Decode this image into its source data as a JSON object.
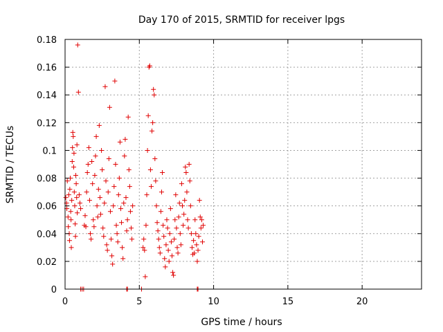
{
  "chart_data": {
    "type": "scatter",
    "title": "Day 170 of 2015, SRMTID for receiver lpgs",
    "xlabel": "GPS time / hours",
    "ylabel": "SRMTID / TECUs",
    "xlim": [
      0,
      24
    ],
    "ylim": [
      0,
      0.18
    ],
    "xticks": [
      0,
      5,
      10,
      15,
      20
    ],
    "yticks": [
      0,
      0.02,
      0.04,
      0.06,
      0.08,
      0.1,
      0.12,
      0.14,
      0.16,
      0.18
    ],
    "xtick_labels": [
      "0",
      "5",
      "10",
      "15",
      "20"
    ],
    "ytick_labels": [
      "0",
      "0.02",
      "0.04",
      "0.06",
      "0.08",
      "0.1",
      "0.12",
      "0.14",
      "0.16",
      "0.18"
    ],
    "grid": true,
    "marker": "+",
    "color": "#e00000",
    "series": [
      {
        "name": "SRMTID",
        "points": [
          [
            0.05,
            0.066
          ],
          [
            0.1,
            0.062
          ],
          [
            0.12,
            0.058
          ],
          [
            0.15,
            0.078
          ],
          [
            0.2,
            0.052
          ],
          [
            0.22,
            0.045
          ],
          [
            0.25,
            0.068
          ],
          [
            0.28,
            0.04
          ],
          [
            0.3,
            0.035
          ],
          [
            0.32,
            0.072
          ],
          [
            0.35,
            0.08
          ],
          [
            0.38,
            0.056
          ],
          [
            0.4,
            0.05
          ],
          [
            0.42,
            0.03
          ],
          [
            0.45,
            0.064
          ],
          [
            0.48,
            0.092
          ],
          [
            0.5,
            0.102
          ],
          [
            0.52,
            0.113
          ],
          [
            0.55,
            0.11
          ],
          [
            0.58,
            0.088
          ],
          [
            0.6,
            0.098
          ],
          [
            0.62,
            0.07
          ],
          [
            0.65,
            0.06
          ],
          [
            0.68,
            0.047
          ],
          [
            0.7,
            0.038
          ],
          [
            0.72,
            0.082
          ],
          [
            0.75,
            0.076
          ],
          [
            0.78,
            0.066
          ],
          [
            0.8,
            0.104
          ],
          [
            0.82,
            0.055
          ],
          [
            0.85,
            0.176
          ],
          [
            0.9,
            0.142
          ],
          [
            0.95,
            0.068
          ],
          [
            1.0,
            0.062
          ],
          [
            1.05,
            0.058
          ],
          [
            1.3,
            0.046
          ],
          [
            1.35,
            0.053
          ],
          [
            1.4,
            0.045
          ],
          [
            1.45,
            0.07
          ],
          [
            1.5,
            0.084
          ],
          [
            1.55,
            0.09
          ],
          [
            1.6,
            0.102
          ],
          [
            1.65,
            0.064
          ],
          [
            1.7,
            0.04
          ],
          [
            1.75,
            0.036
          ],
          [
            1.8,
            0.092
          ],
          [
            1.85,
            0.076
          ],
          [
            1.9,
            0.05
          ],
          [
            1.95,
            0.045
          ],
          [
            2.0,
            0.082
          ],
          [
            2.05,
            0.096
          ],
          [
            2.1,
            0.11
          ],
          [
            2.15,
            0.06
          ],
          [
            2.2,
            0.052
          ],
          [
            2.25,
            0.072
          ],
          [
            2.3,
            0.118
          ],
          [
            2.35,
            0.066
          ],
          [
            2.4,
            0.054
          ],
          [
            2.45,
            0.1
          ],
          [
            2.5,
            0.086
          ],
          [
            2.55,
            0.044
          ],
          [
            2.6,
            0.038
          ],
          [
            2.65,
            0.062
          ],
          [
            2.7,
            0.146
          ],
          [
            2.75,
            0.078
          ],
          [
            2.8,
            0.032
          ],
          [
            2.85,
            0.028
          ],
          [
            2.9,
            0.07
          ],
          [
            2.95,
            0.094
          ],
          [
            3.0,
            0.131
          ],
          [
            3.05,
            0.056
          ],
          [
            3.1,
            0.036
          ],
          [
            3.15,
            0.024
          ],
          [
            3.2,
            0.018
          ],
          [
            3.25,
            0.06
          ],
          [
            3.3,
            0.074
          ],
          [
            3.35,
            0.15
          ],
          [
            3.4,
            0.09
          ],
          [
            3.45,
            0.046
          ],
          [
            3.5,
            0.04
          ],
          [
            3.55,
            0.034
          ],
          [
            3.6,
            0.068
          ],
          [
            3.65,
            0.08
          ],
          [
            3.7,
            0.106
          ],
          [
            3.75,
            0.058
          ],
          [
            3.8,
            0.048
          ],
          [
            3.85,
            0.03
          ],
          [
            3.9,
            0.022
          ],
          [
            3.95,
            0.062
          ],
          [
            4.0,
            0.096
          ],
          [
            4.05,
            0.108
          ],
          [
            4.1,
            0.066
          ],
          [
            4.15,
            0.042
          ],
          [
            4.2,
            0.05
          ],
          [
            4.25,
            0.124
          ],
          [
            4.3,
            0.086
          ],
          [
            4.35,
            0.074
          ],
          [
            4.4,
            0.056
          ],
          [
            4.45,
            0.044
          ],
          [
            4.5,
            0.036
          ],
          [
            4.55,
            0.06
          ],
          [
            5.25,
            0.03
          ],
          [
            5.3,
            0.036
          ],
          [
            5.35,
            0.028
          ],
          [
            5.4,
            0.009
          ],
          [
            5.45,
            0.046
          ],
          [
            5.5,
            0.068
          ],
          [
            5.55,
            0.1
          ],
          [
            5.6,
            0.125
          ],
          [
            5.65,
            0.16
          ],
          [
            5.7,
            0.161
          ],
          [
            5.75,
            0.086
          ],
          [
            5.8,
            0.074
          ],
          [
            5.85,
            0.114
          ],
          [
            5.9,
            0.12
          ],
          [
            5.95,
            0.144
          ],
          [
            6.0,
            0.14
          ],
          [
            6.05,
            0.094
          ],
          [
            6.1,
            0.078
          ],
          [
            6.15,
            0.06
          ],
          [
            6.2,
            0.048
          ],
          [
            6.25,
            0.042
          ],
          [
            6.3,
            0.036
          ],
          [
            6.35,
            0.03
          ],
          [
            6.4,
            0.026
          ],
          [
            6.45,
            0.056
          ],
          [
            6.5,
            0.07
          ],
          [
            6.55,
            0.084
          ],
          [
            6.6,
            0.046
          ],
          [
            6.65,
            0.038
          ],
          [
            6.7,
            0.022
          ],
          [
            6.75,
            0.016
          ],
          [
            6.8,
            0.032
          ],
          [
            6.85,
            0.05
          ],
          [
            6.9,
            0.044
          ],
          [
            6.95,
            0.028
          ],
          [
            7.0,
            0.02
          ],
          [
            7.05,
            0.04
          ],
          [
            7.1,
            0.058
          ],
          [
            7.15,
            0.034
          ],
          [
            7.2,
            0.024
          ],
          [
            7.25,
            0.012
          ],
          [
            7.3,
            0.01
          ],
          [
            7.35,
            0.036
          ],
          [
            7.4,
            0.05
          ],
          [
            7.45,
            0.068
          ],
          [
            7.5,
            0.044
          ],
          [
            7.55,
            0.03
          ],
          [
            7.6,
            0.026
          ],
          [
            7.65,
            0.052
          ],
          [
            7.7,
            0.062
          ],
          [
            7.75,
            0.04
          ],
          [
            7.8,
            0.032
          ],
          [
            7.85,
            0.076
          ],
          [
            7.9,
            0.06
          ],
          [
            7.95,
            0.046
          ],
          [
            8.0,
            0.054
          ],
          [
            8.05,
            0.064
          ],
          [
            8.1,
            0.088
          ],
          [
            8.15,
            0.084
          ],
          [
            8.2,
            0.07
          ],
          [
            8.25,
            0.05
          ],
          [
            8.3,
            0.044
          ],
          [
            8.35,
            0.09
          ],
          [
            8.4,
            0.078
          ],
          [
            8.45,
            0.06
          ],
          [
            8.5,
            0.04
          ],
          [
            8.55,
            0.03
          ],
          [
            8.6,
            0.025
          ],
          [
            8.65,
            0.035
          ],
          [
            8.7,
            0.026
          ],
          [
            8.75,
            0.05
          ],
          [
            8.8,
            0.04
          ],
          [
            8.85,
            0.032
          ],
          [
            8.9,
            0.02
          ],
          [
            8.95,
            0.028
          ],
          [
            9.0,
            0.038
          ],
          [
            9.05,
            0.064
          ],
          [
            9.1,
            0.052
          ],
          [
            9.15,
            0.044
          ],
          [
            9.2,
            0.05
          ],
          [
            9.25,
            0.034
          ],
          [
            9.3,
            0.046
          ],
          [
            1.05,
            0.0
          ],
          [
            1.15,
            0.0
          ],
          [
            1.25,
            0.0
          ],
          [
            4.15,
            0.0
          ],
          [
            4.2,
            0.0
          ],
          [
            5.15,
            0.0
          ],
          [
            8.9,
            0.0
          ],
          [
            8.95,
            0.0
          ]
        ]
      }
    ]
  }
}
